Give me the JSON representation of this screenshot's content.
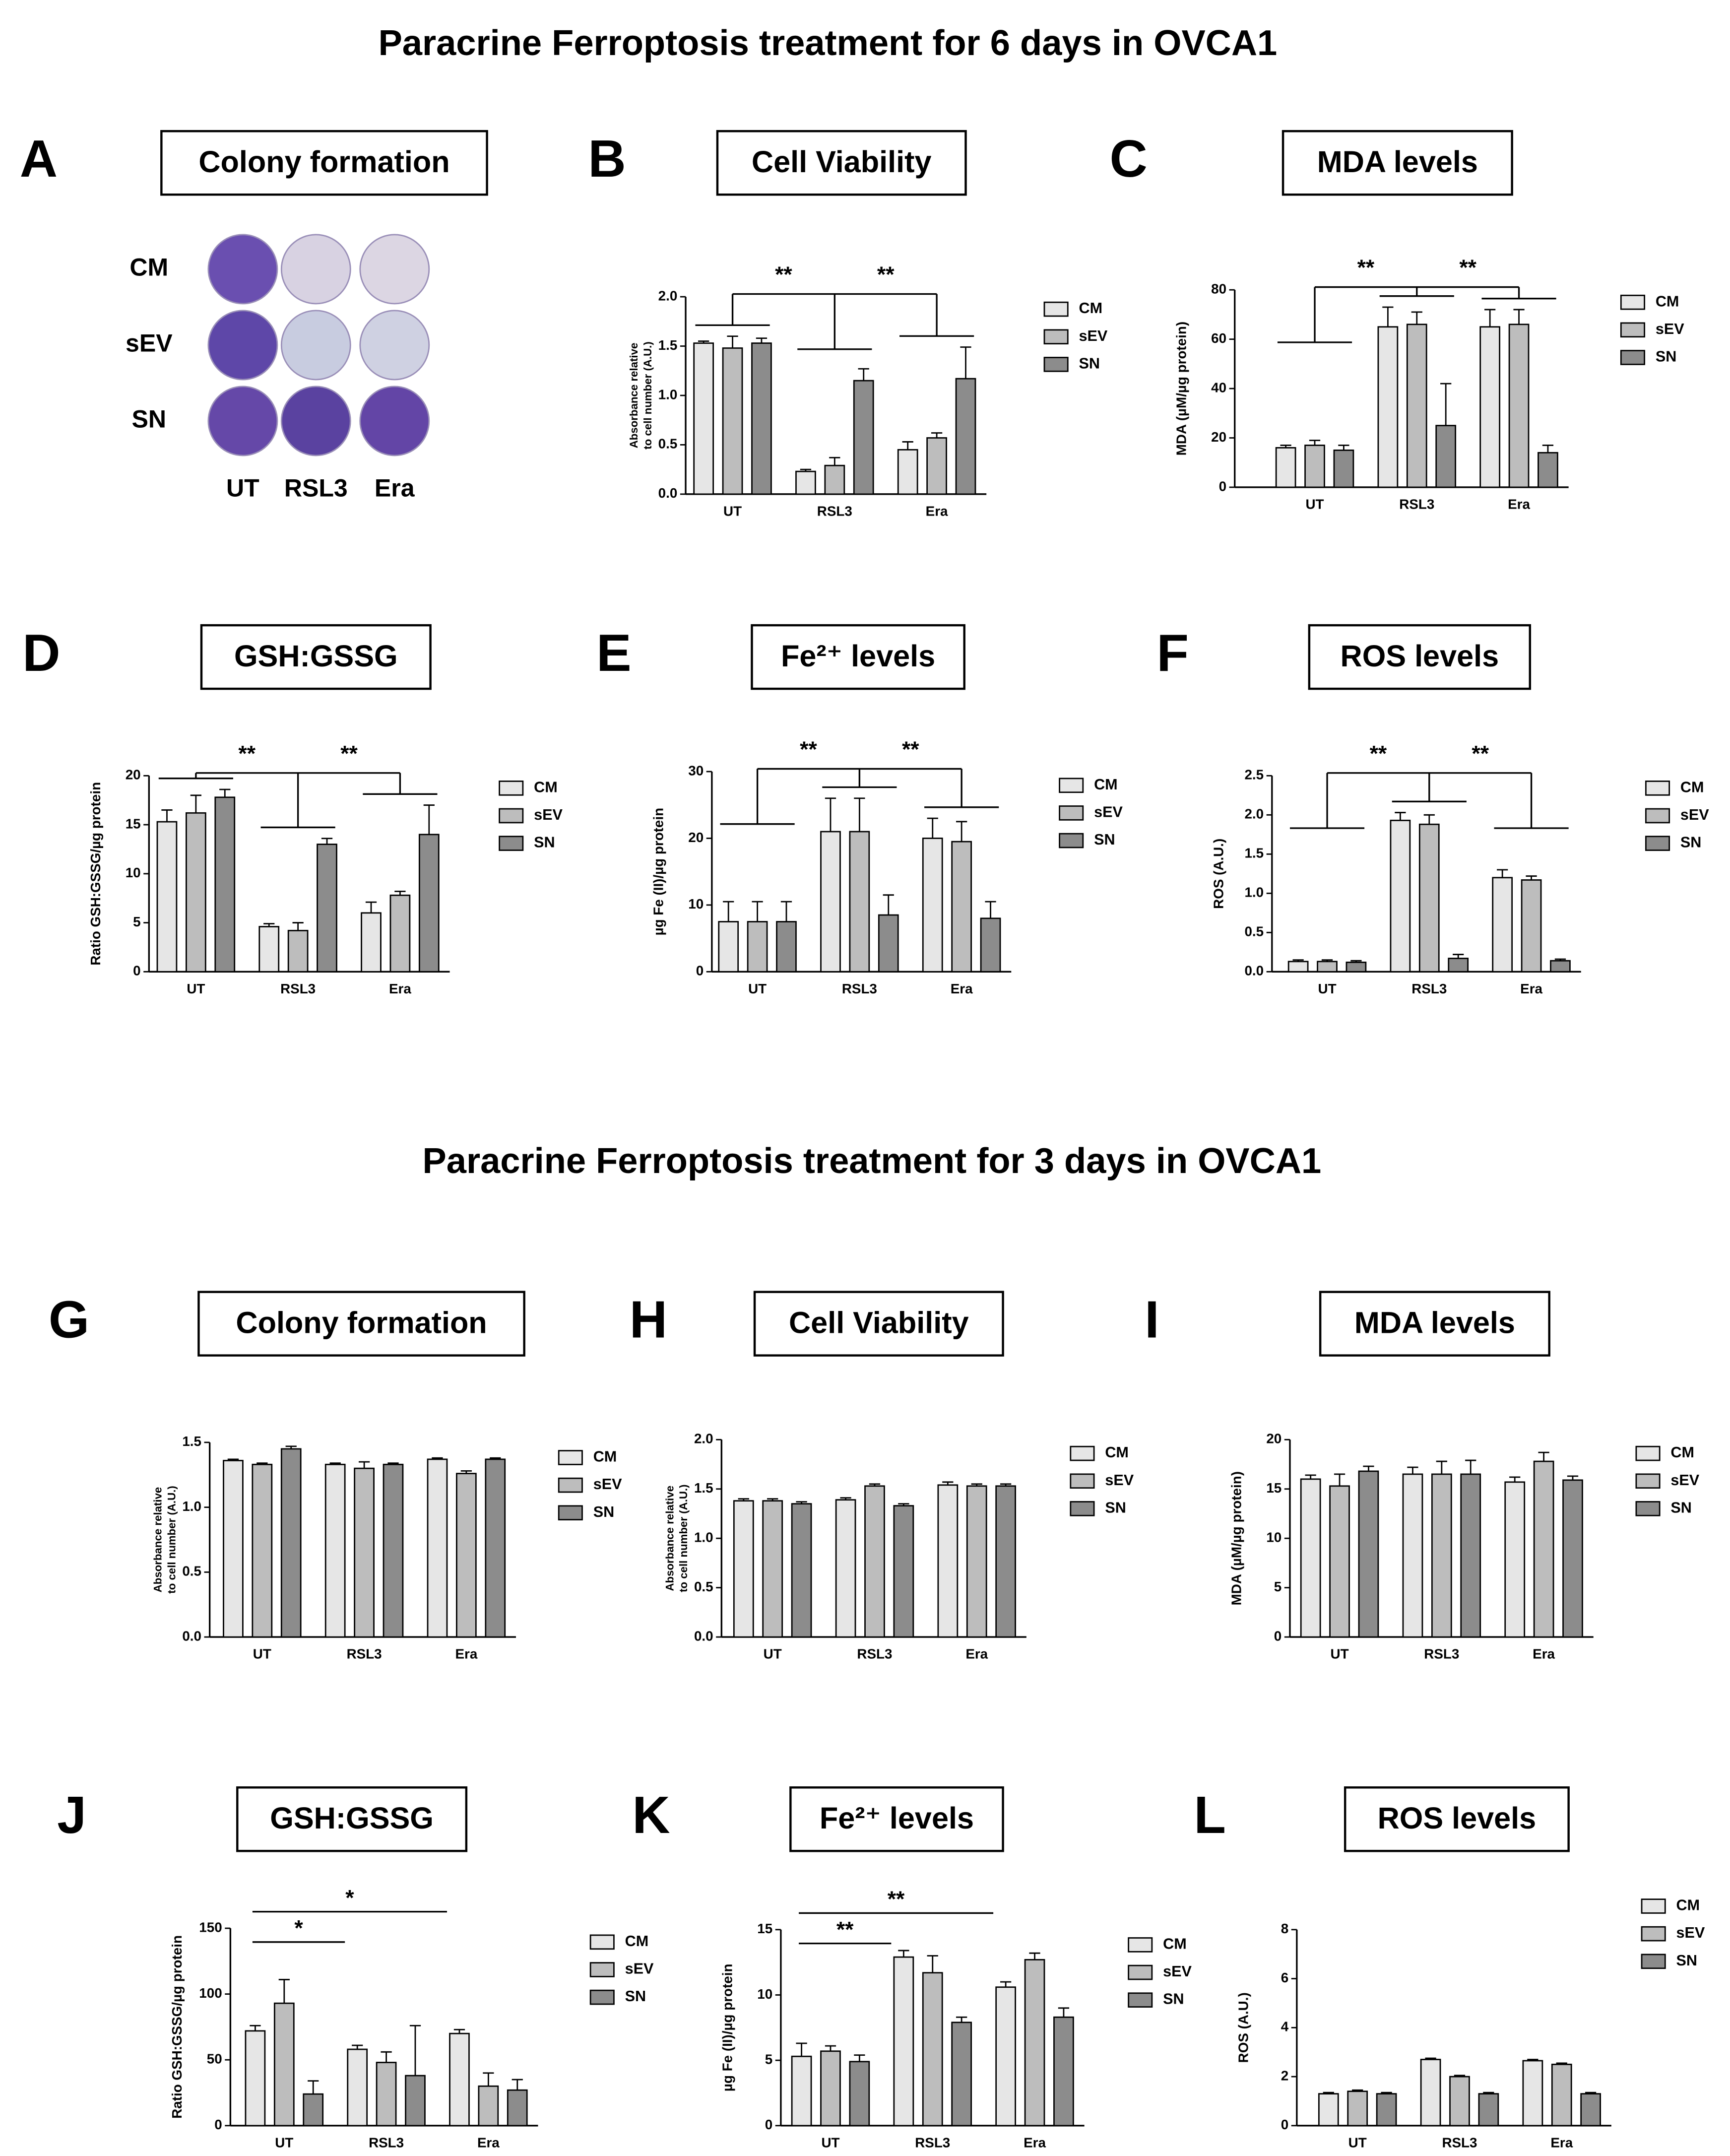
{
  "titles": [
    "Paracrine Ferroptosis treatment for 6 days in OVCA1",
    "Paracrine Ferroptosis treatment for 3 days in OVCA1"
  ],
  "colony_plate": {
    "letter": "A",
    "title": "Colony formation",
    "rows": [
      "CM",
      "sEV",
      "SN"
    ],
    "columns": [
      "UT",
      "RSL3",
      "Era"
    ],
    "well_colors": [
      [
        "#6a4fb0",
        "#d8d2e2",
        "#dcd6e3"
      ],
      [
        "#5e47a8",
        "#c8cce0",
        "#cfd1e2"
      ],
      [
        "#6548a8",
        "#5a42a0",
        "#6345a6"
      ]
    ]
  },
  "chart_data": [
    {
      "type": "bar",
      "letter": "B",
      "title": "Cell Viability",
      "ylabel": [
        "Absorbance relative",
        "to cell number (A.U.)"
      ],
      "categories": [
        "UT",
        "RSL3",
        "Era"
      ],
      "series": [
        {
          "name": "CM",
          "color": "#e6e6e6",
          "values": [
            1.53,
            0.23,
            0.45
          ],
          "errors": [
            0.02,
            0.02,
            0.08
          ]
        },
        {
          "name": "sEV",
          "color": "#bdbdbd",
          "values": [
            1.48,
            0.29,
            0.57
          ],
          "errors": [
            0.12,
            0.08,
            0.05
          ]
        },
        {
          "name": "SN",
          "color": "#8c8c8c",
          "values": [
            1.53,
            1.15,
            1.17
          ],
          "errors": [
            0.05,
            0.12,
            0.32
          ]
        }
      ],
      "ylim": [
        0,
        2
      ],
      "yticks": [
        {
          "value": 0,
          "label": "0.0"
        },
        {
          "value": 0.5,
          "label": "0.5"
        },
        {
          "value": 1,
          "label": "1.0"
        },
        {
          "value": 1.5,
          "label": "1.5"
        },
        {
          "value": 2,
          "label": "2.0"
        }
      ],
      "annotations": [
        "**",
        "**"
      ],
      "bracket_style": "fork"
    },
    {
      "type": "bar",
      "letter": "C",
      "title": "MDA levels",
      "ylabel": [
        "MDA (µM/µg protein)"
      ],
      "categories": [
        "UT",
        "RSL3",
        "Era"
      ],
      "series": [
        {
          "name": "CM",
          "color": "#e6e6e6",
          "values": [
            16,
            65,
            65
          ],
          "errors": [
            1,
            8,
            7
          ]
        },
        {
          "name": "sEV",
          "color": "#bdbdbd",
          "values": [
            17,
            66,
            66
          ],
          "errors": [
            2,
            5,
            6
          ]
        },
        {
          "name": "SN",
          "color": "#8c8c8c",
          "values": [
            15,
            25,
            14
          ],
          "errors": [
            2,
            17,
            3
          ]
        }
      ],
      "ylim": [
        0,
        80
      ],
      "yticks": [
        0,
        20,
        40,
        60,
        80
      ],
      "annotations": [
        "**",
        "**"
      ],
      "bracket_style": "fork"
    },
    {
      "type": "bar",
      "letter": "D",
      "title": "GSH:GSSG",
      "ylabel": [
        "Ratio GSH:GSSG/µg protein"
      ],
      "categories": [
        "UT",
        "RSL3",
        "Era"
      ],
      "series": [
        {
          "name": "CM",
          "color": "#e6e6e6",
          "values": [
            15.3,
            4.6,
            6
          ],
          "errors": [
            1.2,
            0.3,
            1.1
          ]
        },
        {
          "name": "sEV",
          "color": "#bdbdbd",
          "values": [
            16.2,
            4.2,
            7.8
          ],
          "errors": [
            1.8,
            0.8,
            0.4
          ]
        },
        {
          "name": "SN",
          "color": "#8c8c8c",
          "values": [
            17.8,
            13,
            14
          ],
          "errors": [
            0.8,
            0.6,
            3
          ]
        }
      ],
      "ylim": [
        0,
        20
      ],
      "yticks": [
        0,
        5,
        10,
        15,
        20
      ],
      "annotations": [
        "**",
        "**"
      ],
      "bracket_style": "fork"
    },
    {
      "type": "bar",
      "letter": "E",
      "title": "Fe²⁺ levels",
      "ylabel": [
        "µg Fe (II)/µg protein"
      ],
      "categories": [
        "UT",
        "RSL3",
        "Era"
      ],
      "series": [
        {
          "name": "CM",
          "color": "#e6e6e6",
          "values": [
            7.5,
            21,
            20
          ],
          "errors": [
            3,
            5,
            3
          ]
        },
        {
          "name": "sEV",
          "color": "#bdbdbd",
          "values": [
            7.5,
            21,
            19.5
          ],
          "errors": [
            3,
            5,
            3
          ]
        },
        {
          "name": "SN",
          "color": "#8c8c8c",
          "values": [
            7.5,
            8.5,
            8
          ],
          "errors": [
            3,
            3,
            2.5
          ]
        }
      ],
      "ylim": [
        0,
        30
      ],
      "yticks": [
        0,
        10,
        20,
        30
      ],
      "annotations": [
        "**",
        "**"
      ],
      "bracket_style": "fork"
    },
    {
      "type": "bar",
      "letter": "F",
      "title": "ROS levels",
      "ylabel": [
        "ROS (A.U.)"
      ],
      "categories": [
        "UT",
        "RSL3",
        "Era"
      ],
      "series": [
        {
          "name": "CM",
          "color": "#e6e6e6",
          "values": [
            0.13,
            1.93,
            1.2
          ],
          "errors": [
            0.02,
            0.1,
            0.1
          ]
        },
        {
          "name": "sEV",
          "color": "#bdbdbd",
          "values": [
            0.13,
            1.88,
            1.17
          ],
          "errors": [
            0.02,
            0.12,
            0.05
          ]
        },
        {
          "name": "SN",
          "color": "#8c8c8c",
          "values": [
            0.12,
            0.17,
            0.14
          ],
          "errors": [
            0.02,
            0.05,
            0.02
          ]
        }
      ],
      "ylim": [
        0,
        2.5
      ],
      "yticks": [
        {
          "value": 0,
          "label": "0.0"
        },
        {
          "value": 0.5,
          "label": "0.5"
        },
        {
          "value": 1,
          "label": "1.0"
        },
        {
          "value": 1.5,
          "label": "1.5"
        },
        {
          "value": 2,
          "label": "2.0"
        },
        {
          "value": 2.5,
          "label": "2.5"
        }
      ],
      "annotations": [
        "**",
        "**"
      ],
      "bracket_style": "fork"
    },
    {
      "type": "bar",
      "letter": "G",
      "title": "Colony formation",
      "ylabel": [
        "Absorbance relative",
        "to cell number (A.U.)"
      ],
      "categories": [
        "UT",
        "RSL3",
        "Era"
      ],
      "series": [
        {
          "name": "CM",
          "color": "#e6e6e6",
          "values": [
            1.36,
            1.33,
            1.37
          ],
          "errors": [
            0.01,
            0.01,
            0.01
          ]
        },
        {
          "name": "sEV",
          "color": "#bdbdbd",
          "values": [
            1.33,
            1.3,
            1.26
          ],
          "errors": [
            0.01,
            0.05,
            0.02
          ]
        },
        {
          "name": "SN",
          "color": "#8c8c8c",
          "values": [
            1.45,
            1.33,
            1.37
          ],
          "errors": [
            0.02,
            0.01,
            0.01
          ]
        }
      ],
      "ylim": [
        0,
        1.5
      ],
      "yticks": [
        {
          "value": 0,
          "label": "0.0"
        },
        {
          "value": 0.5,
          "label": "0.5"
        },
        {
          "value": 1,
          "label": "1.0"
        },
        {
          "value": 1.5,
          "label": "1.5"
        }
      ],
      "annotations": [],
      "bracket_style": "line"
    },
    {
      "type": "bar",
      "letter": "H",
      "title": "Cell Viability",
      "ylabel": [
        "Absorbance relative",
        "to cell number (A.U.)"
      ],
      "categories": [
        "UT",
        "RSL3",
        "Era"
      ],
      "series": [
        {
          "name": "CM",
          "color": "#e6e6e6",
          "values": [
            1.38,
            1.39,
            1.54
          ],
          "errors": [
            0.02,
            0.02,
            0.03
          ]
        },
        {
          "name": "sEV",
          "color": "#bdbdbd",
          "values": [
            1.38,
            1.53,
            1.53
          ],
          "errors": [
            0.02,
            0.02,
            0.02
          ]
        },
        {
          "name": "SN",
          "color": "#8c8c8c",
          "values": [
            1.35,
            1.33,
            1.53
          ],
          "errors": [
            0.02,
            0.02,
            0.02
          ]
        }
      ],
      "ylim": [
        0,
        2
      ],
      "yticks": [
        {
          "value": 0,
          "label": "0.0"
        },
        {
          "value": 0.5,
          "label": "0.5"
        },
        {
          "value": 1,
          "label": "1.0"
        },
        {
          "value": 1.5,
          "label": "1.5"
        },
        {
          "value": 2,
          "label": "2.0"
        }
      ],
      "annotations": [],
      "bracket_style": "line"
    },
    {
      "type": "bar",
      "letter": "I",
      "title": "MDA levels",
      "ylabel": [
        "MDA (µM/µg protein)"
      ],
      "categories": [
        "UT",
        "RSL3",
        "Era"
      ],
      "series": [
        {
          "name": "CM",
          "color": "#e6e6e6",
          "values": [
            16,
            16.5,
            15.7
          ],
          "errors": [
            0.4,
            0.7,
            0.5
          ]
        },
        {
          "name": "sEV",
          "color": "#bdbdbd",
          "values": [
            15.3,
            16.5,
            17.8
          ],
          "errors": [
            1.2,
            1.3,
            0.9
          ]
        },
        {
          "name": "SN",
          "color": "#8c8c8c",
          "values": [
            16.8,
            16.5,
            15.9
          ],
          "errors": [
            0.5,
            1.4,
            0.4
          ]
        }
      ],
      "ylim": [
        0,
        20
      ],
      "yticks": [
        0,
        5,
        10,
        15,
        20
      ],
      "annotations": [],
      "bracket_style": "line"
    },
    {
      "type": "bar",
      "letter": "J",
      "title": "GSH:GSSG",
      "ylabel": [
        "Ratio GSH:GSSG/µg protein"
      ],
      "categories": [
        "UT",
        "RSL3",
        "Era"
      ],
      "series": [
        {
          "name": "CM",
          "color": "#e6e6e6",
          "values": [
            72,
            58,
            70
          ],
          "errors": [
            4,
            3,
            3
          ]
        },
        {
          "name": "sEV",
          "color": "#bdbdbd",
          "values": [
            93,
            48,
            30
          ],
          "errors": [
            18,
            8,
            10
          ]
        },
        {
          "name": "SN",
          "color": "#8c8c8c",
          "values": [
            24,
            38,
            27
          ],
          "errors": [
            10,
            38,
            8
          ]
        }
      ],
      "ylim": [
        0,
        150
      ],
      "yticks": [
        0,
        50,
        100,
        150
      ],
      "annotations": [
        "*",
        "*"
      ],
      "bracket_style": "line"
    },
    {
      "type": "bar",
      "letter": "K",
      "title": "Fe²⁺ levels",
      "ylabel": [
        "µg Fe (II)/µg protein"
      ],
      "categories": [
        "UT",
        "RSL3",
        "Era"
      ],
      "series": [
        {
          "name": "CM",
          "color": "#e6e6e6",
          "values": [
            5.3,
            12.9,
            10.6
          ],
          "errors": [
            1,
            0.5,
            0.4
          ]
        },
        {
          "name": "sEV",
          "color": "#bdbdbd",
          "values": [
            5.7,
            11.7,
            12.7
          ],
          "errors": [
            0.4,
            1.3,
            0.5
          ]
        },
        {
          "name": "SN",
          "color": "#8c8c8c",
          "values": [
            4.9,
            7.9,
            8.3
          ],
          "errors": [
            0.5,
            0.4,
            0.7
          ]
        }
      ],
      "ylim": [
        0,
        15
      ],
      "yticks": [
        0,
        5,
        10,
        15
      ],
      "annotations": [
        "**",
        "**"
      ],
      "bracket_style": "line"
    },
    {
      "type": "bar",
      "letter": "L",
      "title": "ROS levels",
      "ylabel": [
        "ROS (A.U.)"
      ],
      "categories": [
        "UT",
        "RSL3",
        "Era"
      ],
      "series": [
        {
          "name": "CM",
          "color": "#e6e6e6",
          "values": [
            1.3,
            2.7,
            2.65
          ],
          "errors": [
            0.05,
            0.05,
            0.05
          ]
        },
        {
          "name": "sEV",
          "color": "#bdbdbd",
          "values": [
            1.4,
            2,
            2.5
          ],
          "errors": [
            0.05,
            0.05,
            0.05
          ]
        },
        {
          "name": "SN",
          "color": "#8c8c8c",
          "values": [
            1.3,
            1.3,
            1.3
          ],
          "errors": [
            0.05,
            0.05,
            0.05
          ]
        }
      ],
      "ylim": [
        0,
        8
      ],
      "yticks": [
        0,
        2,
        4,
        6,
        8
      ],
      "annotations": [],
      "bracket_style": "line"
    }
  ]
}
